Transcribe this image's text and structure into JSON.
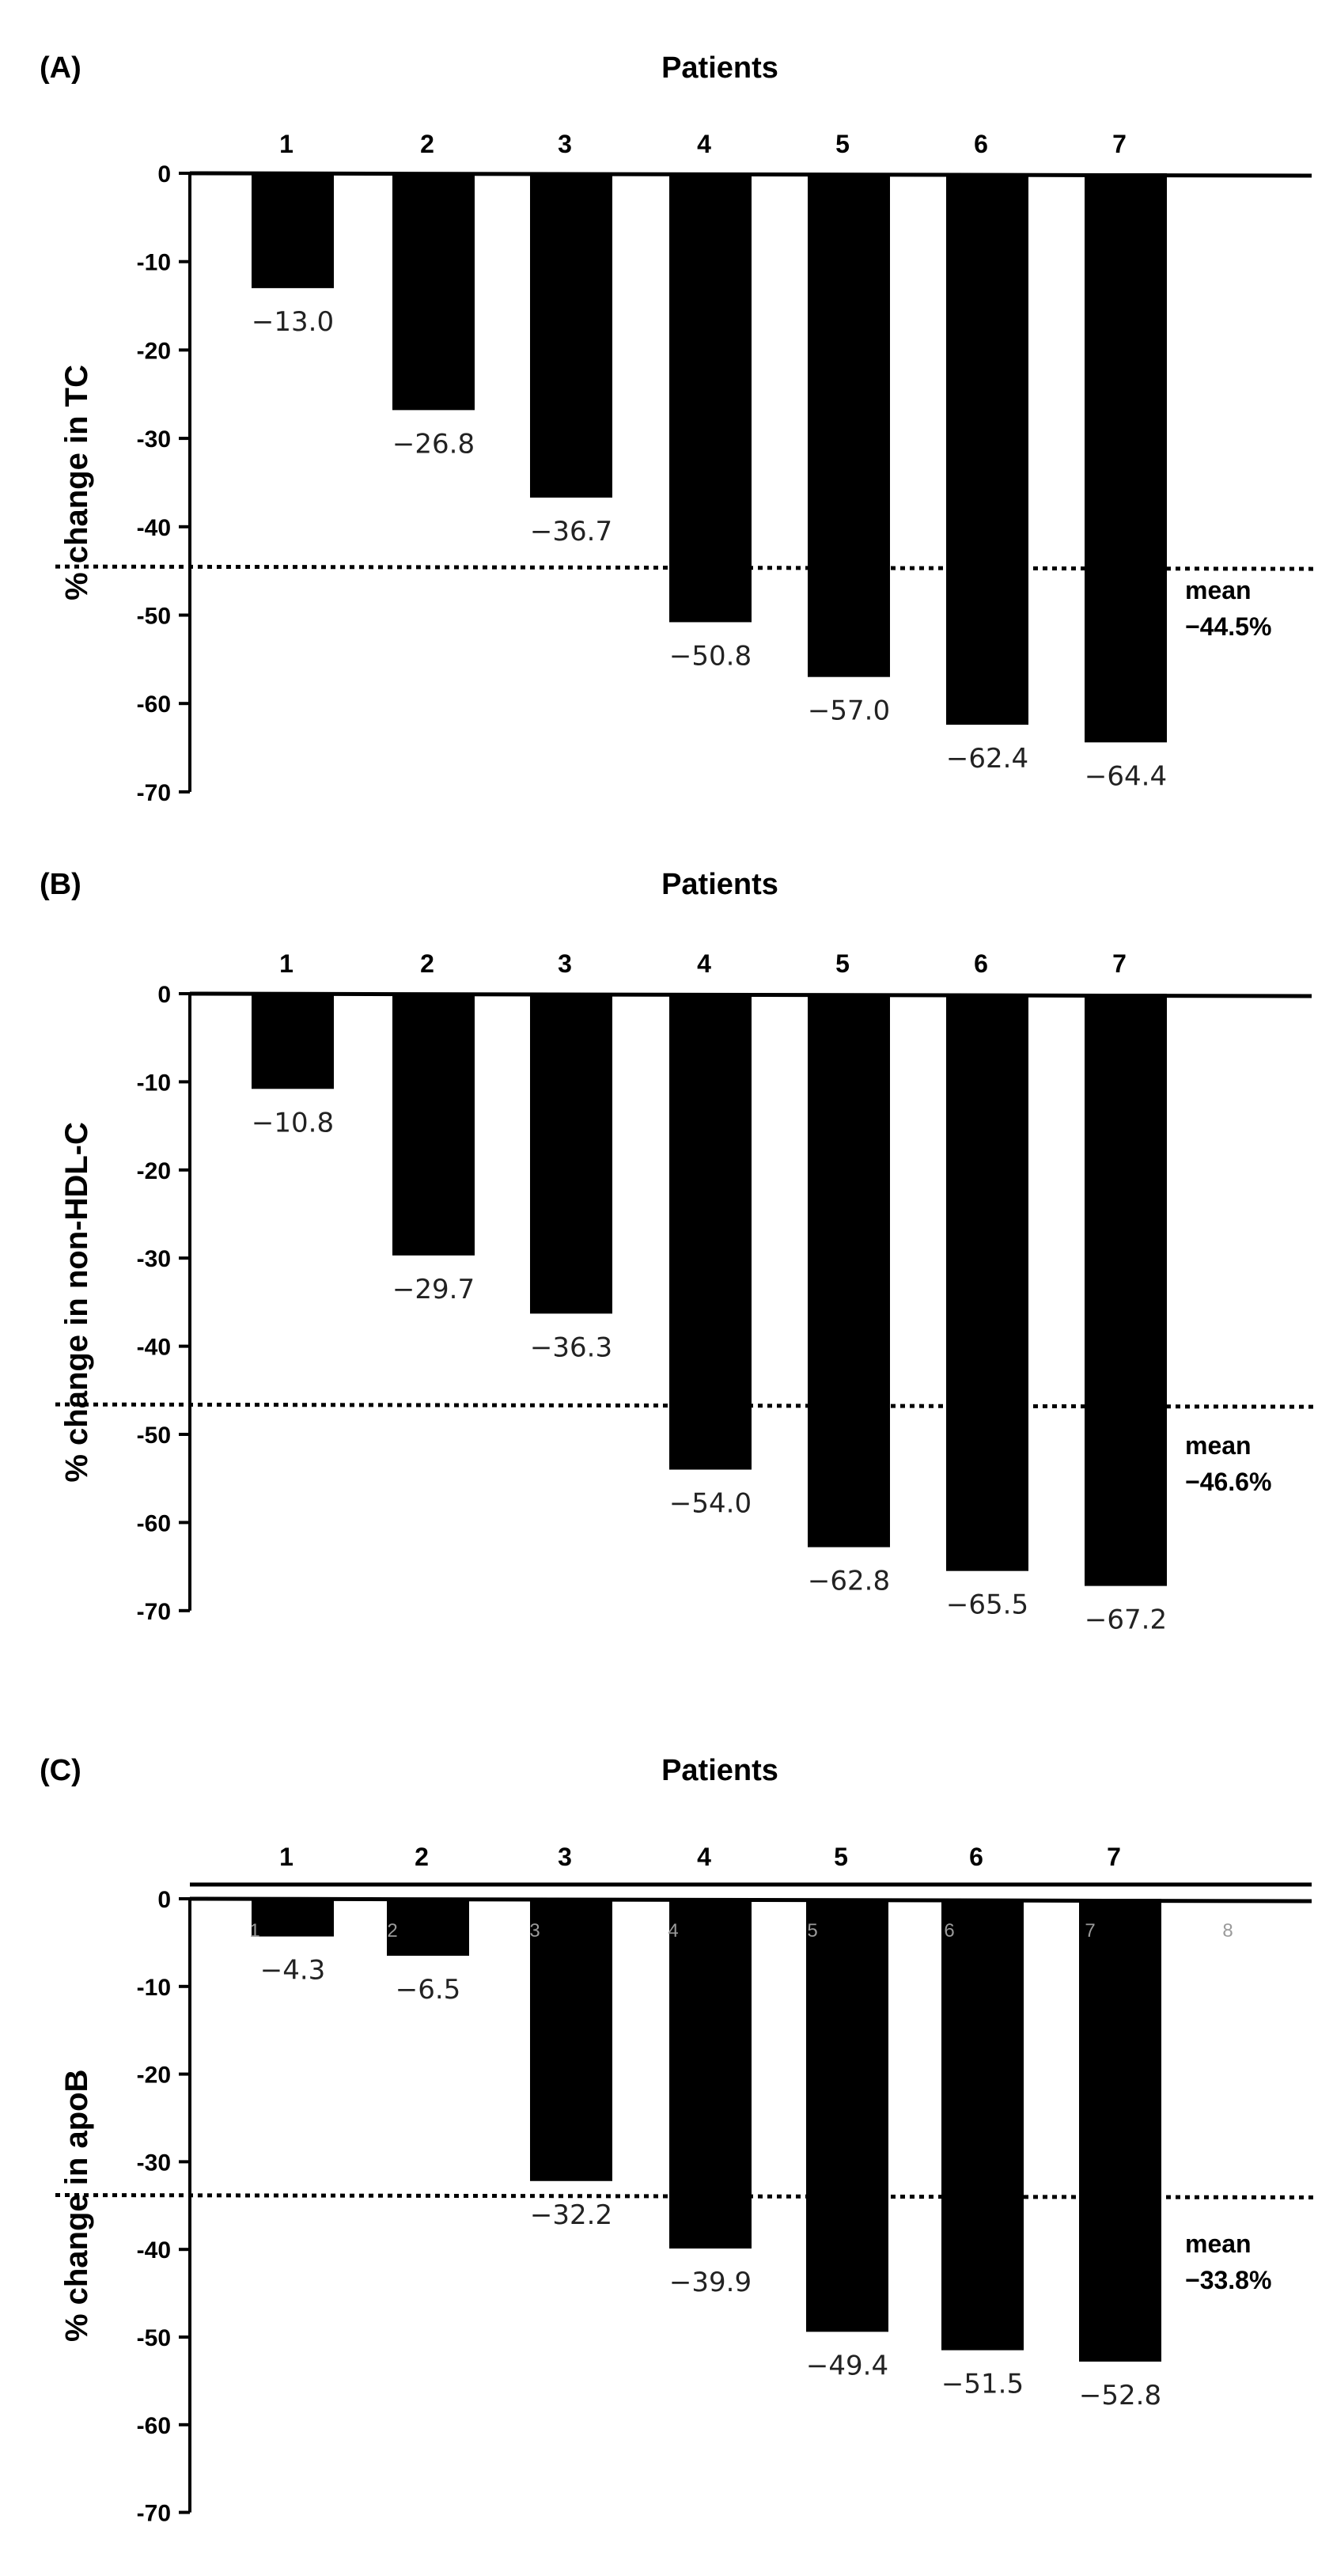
{
  "chart_data": [
    {
      "type": "bar",
      "panel_label": "(A)",
      "title": "Patients",
      "ylabel": "% change in TC",
      "categories": [
        "1",
        "2",
        "3",
        "4",
        "5",
        "6",
        "7"
      ],
      "values": [
        -13.0,
        -26.8,
        -36.7,
        -50.8,
        -57.0,
        -62.4,
        -64.4
      ],
      "value_labels": [
        "−13.0",
        "−26.8",
        "−36.7",
        "−50.8",
        "−57.0",
        "−62.4",
        "−64.4"
      ],
      "ylim": [
        -70,
        0
      ],
      "yticks": [
        "0",
        "-10",
        "-20",
        "-30",
        "-40",
        "-50",
        "-60",
        "-70"
      ],
      "mean": {
        "label": "mean",
        "value_label": "−44.5%",
        "value": -44.5
      },
      "grid": false
    },
    {
      "type": "bar",
      "panel_label": "(B)",
      "title": "Patients",
      "ylabel": "% change in non-HDL-C",
      "categories": [
        "1",
        "2",
        "3",
        "4",
        "5",
        "6",
        "7"
      ],
      "values": [
        -10.8,
        -29.7,
        -36.3,
        -54.0,
        -62.8,
        -65.5,
        -67.2
      ],
      "value_labels": [
        "−10.8",
        "−29.7",
        "−36.3",
        "−54.0",
        "−62.8",
        "−65.5",
        "−67.2"
      ],
      "ylim": [
        -70,
        0
      ],
      "yticks": [
        "0",
        "-10",
        "-20",
        "-30",
        "-40",
        "-50",
        "-60",
        "-70"
      ],
      "mean": {
        "label": "mean",
        "value_label": "−46.6%",
        "value": -46.6
      },
      "grid": false
    },
    {
      "type": "bar",
      "panel_label": "(C)",
      "title": "Patients",
      "ylabel": "% change in apoB",
      "categories": [
        "1",
        "2",
        "3",
        "4",
        "5",
        "6",
        "7"
      ],
      "values": [
        -4.3,
        -6.5,
        -32.2,
        -39.9,
        -49.4,
        -51.5,
        -52.8
      ],
      "value_labels": [
        "−4.3",
        "−6.5",
        "−32.2",
        "−39.9",
        "−49.4",
        "−51.5",
        "−52.8"
      ],
      "ylim": [
        -70,
        0
      ],
      "yticks": [
        "0",
        "-10",
        "-20",
        "-30",
        "-40",
        "-50",
        "-60",
        "-70"
      ],
      "mean": {
        "label": "mean",
        "value_label": "−33.8%",
        "value": -33.8
      },
      "faint_labels": [
        "1",
        "2",
        "3",
        "4",
        "5",
        "6",
        "7",
        "8"
      ],
      "grid": false
    }
  ]
}
